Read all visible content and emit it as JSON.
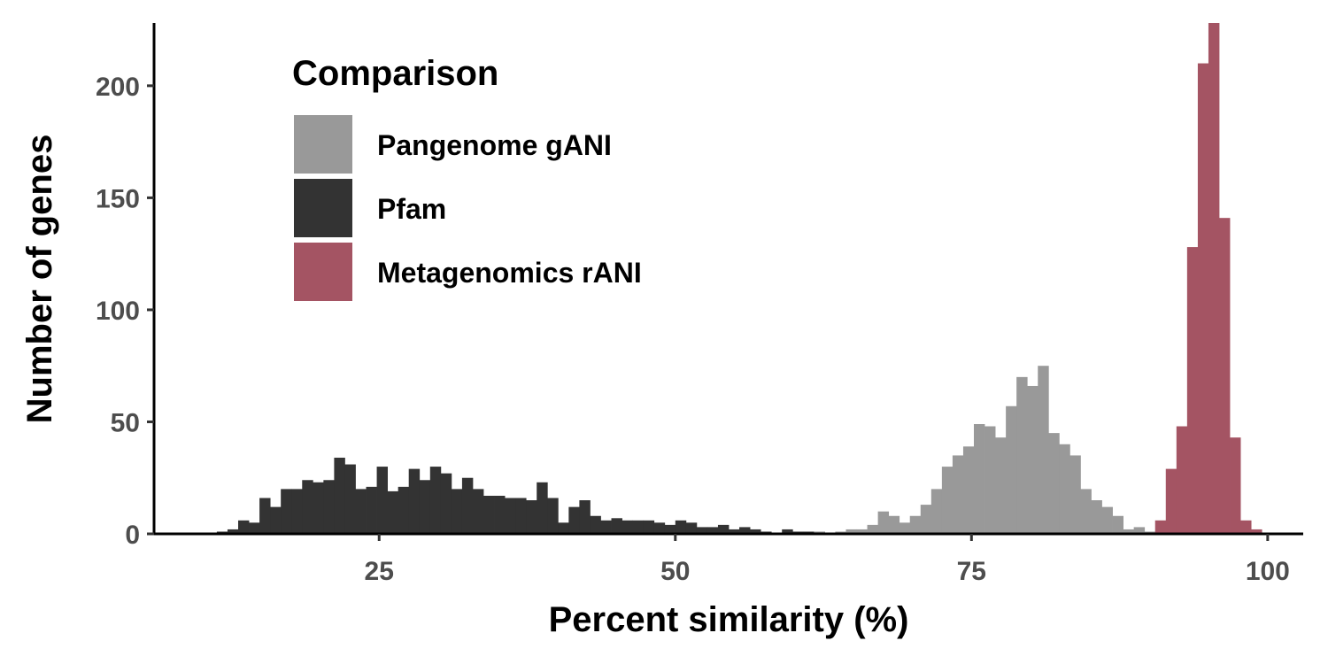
{
  "chart_data": {
    "type": "bar",
    "subtype": "histogram",
    "title": "",
    "xlabel": "Percent similarity (%)",
    "ylabel": "Number of genes",
    "xlim": [
      6,
      103
    ],
    "ylim": [
      0,
      228
    ],
    "x_ticks": [
      25,
      50,
      75,
      100
    ],
    "y_ticks": [
      0,
      50,
      100,
      150,
      200
    ],
    "grid": false,
    "bin_width": 0.9,
    "legend": {
      "title": "Comparison",
      "placement": "top-left",
      "entries": [
        {
          "name": "Pangenome gANI",
          "color": "#999999"
        },
        {
          "name": "Pfam",
          "color": "#333333"
        },
        {
          "name": "Metagenomics rANI",
          "color": "#a45463"
        }
      ]
    },
    "series": [
      {
        "name": "Pfam",
        "color": "#333333",
        "bins": [
          [
            11.3,
            1
          ],
          [
            12.2,
            2
          ],
          [
            13.1,
            6
          ],
          [
            14.0,
            5
          ],
          [
            14.9,
            16
          ],
          [
            15.8,
            12
          ],
          [
            16.7,
            20
          ],
          [
            17.6,
            20
          ],
          [
            18.5,
            24
          ],
          [
            19.4,
            23
          ],
          [
            20.3,
            24
          ],
          [
            21.2,
            34
          ],
          [
            22.1,
            31
          ],
          [
            23.0,
            20
          ],
          [
            23.9,
            21
          ],
          [
            24.8,
            30
          ],
          [
            25.7,
            19
          ],
          [
            26.6,
            21
          ],
          [
            27.5,
            29
          ],
          [
            28.4,
            24
          ],
          [
            29.3,
            30
          ],
          [
            30.2,
            27
          ],
          [
            31.1,
            20
          ],
          [
            32.0,
            25
          ],
          [
            32.9,
            20
          ],
          [
            33.8,
            17
          ],
          [
            34.7,
            17
          ],
          [
            35.6,
            16
          ],
          [
            36.5,
            16
          ],
          [
            37.4,
            15
          ],
          [
            38.3,
            23
          ],
          [
            39.2,
            16
          ],
          [
            40.1,
            5
          ],
          [
            41.0,
            12
          ],
          [
            41.9,
            15
          ],
          [
            42.8,
            8
          ],
          [
            43.7,
            6
          ],
          [
            44.6,
            7
          ],
          [
            45.5,
            6
          ],
          [
            46.4,
            6
          ],
          [
            47.3,
            6
          ],
          [
            48.2,
            5
          ],
          [
            49.1,
            4
          ],
          [
            50.0,
            6
          ],
          [
            50.9,
            5
          ],
          [
            51.8,
            3
          ],
          [
            52.7,
            3
          ],
          [
            53.6,
            4
          ],
          [
            54.5,
            2
          ],
          [
            55.4,
            3
          ],
          [
            56.3,
            2
          ],
          [
            57.2,
            1
          ],
          [
            58.1,
            0
          ],
          [
            59.0,
            2
          ],
          [
            59.9,
            1
          ],
          [
            60.8,
            1
          ],
          [
            61.7,
            1
          ]
        ]
      },
      {
        "name": "Pangenome gANI",
        "color": "#999999",
        "bins": [
          [
            61.7,
            1
          ],
          [
            62.6,
            0
          ],
          [
            63.5,
            1
          ],
          [
            64.4,
            2
          ],
          [
            65.3,
            2
          ],
          [
            66.2,
            4
          ],
          [
            67.1,
            10
          ],
          [
            68.0,
            8
          ],
          [
            68.9,
            5
          ],
          [
            69.8,
            8
          ],
          [
            70.7,
            13
          ],
          [
            71.6,
            20
          ],
          [
            72.5,
            30
          ],
          [
            73.4,
            35
          ],
          [
            74.3,
            39
          ],
          [
            75.2,
            49
          ],
          [
            76.1,
            48
          ],
          [
            77.0,
            43
          ],
          [
            77.9,
            57
          ],
          [
            78.8,
            70
          ],
          [
            79.7,
            66
          ],
          [
            80.6,
            75
          ],
          [
            81.5,
            45
          ],
          [
            82.4,
            40
          ],
          [
            83.3,
            35
          ],
          [
            84.2,
            20
          ],
          [
            85.1,
            15
          ],
          [
            86.0,
            12
          ],
          [
            86.9,
            8
          ],
          [
            87.8,
            2
          ],
          [
            88.7,
            3
          ],
          [
            89.6,
            1
          ],
          [
            90.5,
            1
          ]
        ]
      },
      {
        "name": "Metagenomics rANI",
        "color": "#a45463",
        "bins": [
          [
            90.5,
            6
          ],
          [
            91.4,
            29
          ],
          [
            92.3,
            48
          ],
          [
            93.2,
            128
          ],
          [
            94.1,
            210
          ],
          [
            95.0,
            228
          ],
          [
            95.9,
            141
          ],
          [
            96.8,
            43
          ],
          [
            97.7,
            6
          ],
          [
            98.6,
            2
          ]
        ]
      }
    ]
  }
}
